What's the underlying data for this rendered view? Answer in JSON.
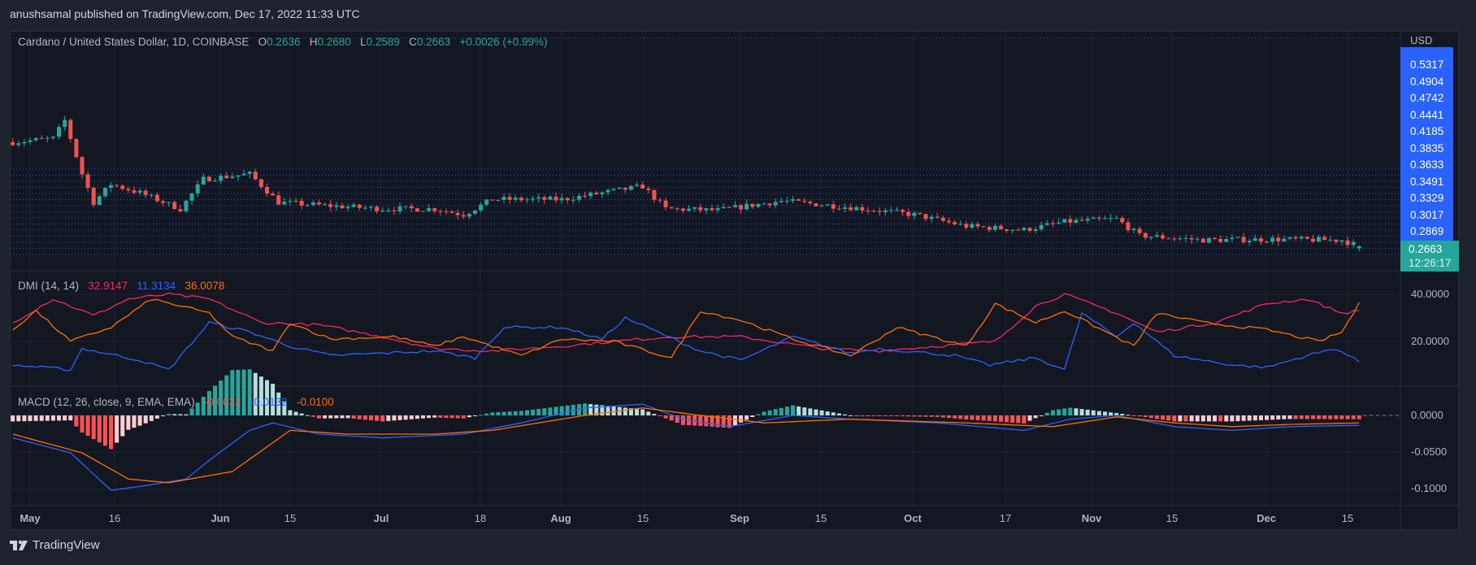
{
  "publisher_line": "anushsamal published on TradingView.com, Dec 17, 2022 11:33 UTC",
  "symbol": {
    "title": "Cardano / United States Dollar, 1D, COINBASE",
    "o_label": "O",
    "open": "0.2636",
    "h_label": "H",
    "high": "0.2680",
    "l_label": "L",
    "low": "0.2589",
    "c_label": "C",
    "close": "0.2663",
    "change": "+0.0026 (+0.99%)"
  },
  "price_axis": {
    "currency": "USD",
    "labels": [
      "0.5317",
      "0.4904",
      "0.4742",
      "0.4441",
      "0.4185",
      "0.3835",
      "0.3633",
      "0.3491",
      "0.3329",
      "0.3017",
      "0.2869"
    ],
    "last_price": "0.2663",
    "countdown": "12:26:17"
  },
  "dmi": {
    "title": "DMI (14, 14)",
    "minus_di": "32.9147",
    "plus_di": "11.3134",
    "adx": "36.0078",
    "axis_labels": [
      "40.0000",
      "20.0000"
    ]
  },
  "macd": {
    "title": "MACD (12, 26, close, 9, EMA, EMA)",
    "histogram": "-0.0032",
    "macd": "-0.0132",
    "signal": "-0.0100",
    "axis_labels": [
      "0.0000",
      "-0.0500",
      "-0.1000"
    ]
  },
  "time_axis": [
    "May",
    "16",
    "Jun",
    "15",
    "Jul",
    "18",
    "Aug",
    "15",
    "Sep",
    "15",
    "Oct",
    "17",
    "Nov",
    "15",
    "Dec",
    "15"
  ],
  "footer": {
    "brand": "TradingView"
  },
  "colors": {
    "up": "#26a69a",
    "down": "#ef5350",
    "minus_di": "#f7255f",
    "plus_di": "#2962ff",
    "adx": "#ff6d00",
    "macd": "#2962ff",
    "signal": "#ff6d00"
  },
  "chart_data": [
    {
      "type": "candlestick",
      "title": "Cardano / United States Dollar, 1D, COINBASE",
      "close_path": [
        [
          "2022-04-28",
          0.41
        ],
        [
          "2022-05-05",
          0.415
        ],
        [
          "2022-05-07",
          0.44
        ],
        [
          "2022-05-10",
          0.366
        ],
        [
          "2022-05-12",
          0.327
        ],
        [
          "2022-05-15",
          0.352
        ],
        [
          "2022-05-20",
          0.34
        ],
        [
          "2022-05-27",
          0.318
        ],
        [
          "2022-05-31",
          0.359
        ],
        [
          "2022-06-08",
          0.366
        ],
        [
          "2022-06-13",
          0.327
        ],
        [
          "2022-06-20",
          0.323
        ],
        [
          "2022-07-01",
          0.318
        ],
        [
          "2022-07-10",
          0.318
        ],
        [
          "2022-07-15",
          0.31
        ],
        [
          "2022-07-20",
          0.331
        ],
        [
          "2022-08-01",
          0.331
        ],
        [
          "2022-08-15",
          0.349
        ],
        [
          "2022-08-19",
          0.318
        ],
        [
          "2022-08-28",
          0.316
        ],
        [
          "2022-09-08",
          0.329
        ],
        [
          "2022-09-20",
          0.32
        ],
        [
          "2022-10-01",
          0.31
        ],
        [
          "2022-10-10",
          0.294
        ],
        [
          "2022-10-20",
          0.289
        ],
        [
          "2022-10-27",
          0.3
        ],
        [
          "2022-11-05",
          0.304
        ],
        [
          "2022-11-09",
          0.281
        ],
        [
          "2022-11-20",
          0.275
        ],
        [
          "2022-12-01",
          0.276
        ],
        [
          "2022-12-14",
          0.275
        ],
        [
          "2022-12-17",
          0.2663
        ]
      ]
    },
    {
      "type": "line",
      "title": "DMI (14, 14)",
      "ylim": [
        5,
        45
      ],
      "series": [
        {
          "name": "-DI",
          "points": [
            [
              "2022-04-28",
              28
            ],
            [
              "2022-05-05",
              38
            ],
            [
              "2022-05-12",
              31
            ],
            [
              "2022-05-18",
              38
            ],
            [
              "2022-05-25",
              40
            ],
            [
              "2022-06-01",
              38
            ],
            [
              "2022-06-10",
              28
            ],
            [
              "2022-06-20",
              27
            ],
            [
              "2022-07-01",
              22
            ],
            [
              "2022-07-10",
              17
            ],
            [
              "2022-07-20",
              16
            ],
            [
              "2022-08-01",
              18
            ],
            [
              "2022-08-10",
              20
            ],
            [
              "2022-08-20",
              22
            ],
            [
              "2022-09-01",
              22
            ],
            [
              "2022-09-15",
              17
            ],
            [
              "2022-09-25",
              16
            ],
            [
              "2022-10-05",
              18
            ],
            [
              "2022-10-15",
              20
            ],
            [
              "2022-10-22",
              35
            ],
            [
              "2022-10-27",
              40
            ],
            [
              "2022-11-05",
              32
            ],
            [
              "2022-11-12",
              24
            ],
            [
              "2022-11-22",
              28
            ],
            [
              "2022-12-01",
              36
            ],
            [
              "2022-12-08",
              38
            ],
            [
              "2022-12-14",
              32
            ],
            [
              "2022-12-17",
              32.9147
            ]
          ]
        },
        {
          "name": "+DI",
          "points": [
            [
              "2022-04-28",
              10
            ],
            [
              "2022-05-08",
              8
            ],
            [
              "2022-05-10",
              17
            ],
            [
              "2022-05-20",
              12
            ],
            [
              "2022-05-25",
              8
            ],
            [
              "2022-06-01",
              28
            ],
            [
              "2022-06-08",
              24
            ],
            [
              "2022-06-15",
              18
            ],
            [
              "2022-06-22",
              14
            ],
            [
              "2022-07-10",
              16
            ],
            [
              "2022-07-17",
              13
            ],
            [
              "2022-07-22",
              26
            ],
            [
              "2022-08-01",
              26
            ],
            [
              "2022-08-08",
              21
            ],
            [
              "2022-08-12",
              30
            ],
            [
              "2022-08-25",
              16
            ],
            [
              "2022-09-01",
              12
            ],
            [
              "2022-09-10",
              22
            ],
            [
              "2022-09-20",
              15
            ],
            [
              "2022-09-25",
              17
            ],
            [
              "2022-10-08",
              14
            ],
            [
              "2022-10-14",
              10
            ],
            [
              "2022-10-22",
              13
            ],
            [
              "2022-10-27",
              8
            ],
            [
              "2022-10-30",
              32
            ],
            [
              "2022-11-05",
              22
            ],
            [
              "2022-11-08",
              28
            ],
            [
              "2022-11-15",
              14
            ],
            [
              "2022-11-25",
              10
            ],
            [
              "2022-12-01",
              9
            ],
            [
              "2022-12-08",
              14
            ],
            [
              "2022-12-13",
              17
            ],
            [
              "2022-12-17",
              11.3134
            ]
          ]
        },
        {
          "name": "ADX",
          "points": [
            [
              "2022-04-28",
              25
            ],
            [
              "2022-05-02",
              33
            ],
            [
              "2022-05-08",
              20
            ],
            [
              "2022-05-15",
              26
            ],
            [
              "2022-05-22",
              38
            ],
            [
              "2022-06-01",
              32
            ],
            [
              "2022-06-05",
              22
            ],
            [
              "2022-06-12",
              16
            ],
            [
              "2022-06-15",
              28
            ],
            [
              "2022-06-22",
              21
            ],
            [
              "2022-07-03",
              22
            ],
            [
              "2022-07-10",
              18
            ],
            [
              "2022-07-15",
              22
            ],
            [
              "2022-07-25",
              14
            ],
            [
              "2022-08-01",
              21
            ],
            [
              "2022-08-10",
              20
            ],
            [
              "2022-08-20",
              13
            ],
            [
              "2022-08-25",
              33
            ],
            [
              "2022-09-01",
              29
            ],
            [
              "2022-09-10",
              21
            ],
            [
              "2022-09-20",
              14
            ],
            [
              "2022-09-28",
              26
            ],
            [
              "2022-10-10",
              18
            ],
            [
              "2022-10-15",
              36
            ],
            [
              "2022-10-22",
              28
            ],
            [
              "2022-10-27",
              33
            ],
            [
              "2022-11-08",
              18
            ],
            [
              "2022-11-12",
              32
            ],
            [
              "2022-11-20",
              28
            ],
            [
              "2022-12-01",
              25
            ],
            [
              "2022-12-10",
              20
            ],
            [
              "2022-12-14",
              24
            ],
            [
              "2022-12-17",
              36.0078
            ]
          ]
        }
      ]
    },
    {
      "type": "line+bar",
      "title": "MACD (12, 26, close, 9, EMA, EMA)",
      "ylim": [
        -0.11,
        0.02
      ],
      "series": [
        {
          "name": "MACD",
          "points": [
            [
              "2022-04-28",
              -0.03
            ],
            [
              "2022-05-08",
              -0.05
            ],
            [
              "2022-05-15",
              -0.1
            ],
            [
              "2022-05-20",
              -0.095
            ],
            [
              "2022-05-28",
              -0.085
            ],
            [
              "2022-06-01",
              -0.06
            ],
            [
              "2022-06-08",
              -0.02
            ],
            [
              "2022-06-12",
              -0.01
            ],
            [
              "2022-06-20",
              -0.025
            ],
            [
              "2022-07-01",
              -0.03
            ],
            [
              "2022-07-15",
              -0.025
            ],
            [
              "2022-07-25",
              -0.01
            ],
            [
              "2022-08-05",
              0.01
            ],
            [
              "2022-08-15",
              0.015
            ],
            [
              "2022-08-22",
              -0.005
            ],
            [
              "2022-08-30",
              -0.015
            ],
            [
              "2022-09-10",
              0
            ],
            [
              "2022-09-20",
              -0.005
            ],
            [
              "2022-10-05",
              -0.01
            ],
            [
              "2022-10-20",
              -0.02
            ],
            [
              "2022-10-28",
              -0.005
            ],
            [
              "2022-11-05",
              0
            ],
            [
              "2022-11-15",
              -0.015
            ],
            [
              "2022-11-25",
              -0.02
            ],
            [
              "2022-12-05",
              -0.015
            ],
            [
              "2022-12-17",
              -0.0132
            ]
          ]
        },
        {
          "name": "Signal",
          "points": [
            [
              "2022-04-28",
              -0.025
            ],
            [
              "2022-05-10",
              -0.05
            ],
            [
              "2022-05-18",
              -0.085
            ],
            [
              "2022-05-25",
              -0.09
            ],
            [
              "2022-06-05",
              -0.075
            ],
            [
              "2022-06-15",
              -0.02
            ],
            [
              "2022-06-25",
              -0.025
            ],
            [
              "2022-07-10",
              -0.025
            ],
            [
              "2022-07-20",
              -0.02
            ],
            [
              "2022-08-05",
              0
            ],
            [
              "2022-08-15",
              0.01
            ],
            [
              "2022-08-25",
              0
            ],
            [
              "2022-09-05",
              -0.01
            ],
            [
              "2022-09-20",
              -0.005
            ],
            [
              "2022-10-10",
              -0.01
            ],
            [
              "2022-10-25",
              -0.015
            ],
            [
              "2022-11-05",
              -0.002
            ],
            [
              "2022-11-15",
              -0.01
            ],
            [
              "2022-11-25",
              -0.015
            ],
            [
              "2022-12-05",
              -0.012
            ],
            [
              "2022-12-17",
              -0.01
            ]
          ]
        }
      ]
    }
  ]
}
